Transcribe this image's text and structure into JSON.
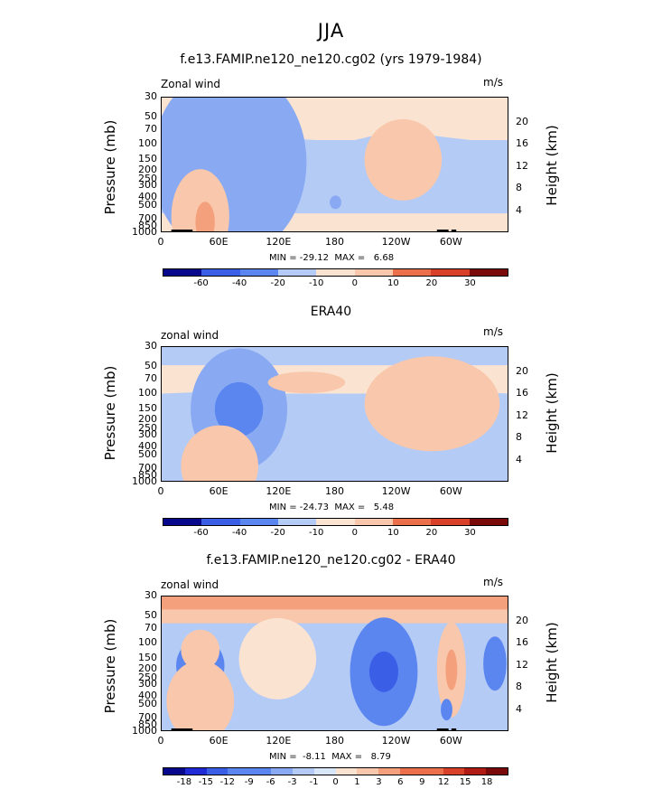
{
  "figure": {
    "title": "JJA",
    "colors": [
      "#08088c",
      "#1f2ad6",
      "#3a5fe6",
      "#5b86f0",
      "#89aaf2",
      "#b4cbf6",
      "#d8e6fa",
      "#fbe3d2",
      "#f9c7ab",
      "#f4a07d",
      "#ec6f4c",
      "#d9402a",
      "#b01c14",
      "#7a0a0a"
    ]
  },
  "panels": [
    {
      "title": "f.e13.FAMIP.ne120_ne120.cg02 (yrs 1979-1984)",
      "variable_label": "Zonal wind",
      "units_label": "m/s",
      "y_axis_label": "Pressure (mb)",
      "y2_axis_label": "Height (km)",
      "stats": "MIN = -29.12  MAX =   6.68",
      "colorbar_labels": [
        "-60",
        "-40",
        "-20",
        "-10",
        "0",
        "10",
        "20",
        "30"
      ]
    },
    {
      "title": "ERA40",
      "variable_label": "zonal wind",
      "units_label": "m/s",
      "y_axis_label": "Pressure (mb)",
      "y2_axis_label": "Height (km)",
      "stats": "MIN = -24.73  MAX =   5.48",
      "colorbar_labels": [
        "-60",
        "-40",
        "-20",
        "-10",
        "0",
        "10",
        "20",
        "30"
      ]
    },
    {
      "title": "f.e13.FAMIP.ne120_ne120.cg02 - ERA40",
      "variable_label": "zonal wind",
      "units_label": "m/s",
      "y_axis_label": "Pressure (mb)",
      "y2_axis_label": "Height (km)",
      "stats": "MIN =  -8.11  MAX =   8.79",
      "colorbar_labels": [
        "-18",
        "-15",
        "-12",
        "-9",
        "-6",
        "-3",
        "-1",
        "0",
        "1",
        "3",
        "6",
        "9",
        "12",
        "15",
        "18"
      ]
    }
  ],
  "chart_data": [
    {
      "type": "heatmap",
      "title": "f.e13.FAMIP.ne120_ne120.cg02 (yrs 1979-1984)",
      "ylabel": "Pressure (mb)",
      "y2label": "Height (km)",
      "x_ticks": [
        "0",
        "60E",
        "120E",
        "180",
        "120W",
        "60W"
      ],
      "x_tick_values": [
        0,
        60,
        120,
        180,
        240,
        300
      ],
      "xlim": [
        0,
        360
      ],
      "y_ticks": [
        "30",
        "50",
        "70",
        "100",
        "150",
        "200",
        "250",
        "300",
        "400",
        "500",
        "700",
        "850",
        "1000"
      ],
      "y_tick_values": [
        30,
        50,
        70,
        100,
        150,
        200,
        250,
        300,
        400,
        500,
        700,
        850,
        1000
      ],
      "ylim": [
        1000,
        30
      ],
      "y_scale": "log",
      "y2_ticks": [
        "4",
        "8",
        "12",
        "16",
        "20"
      ],
      "y2_tick_values": [
        4,
        8,
        12,
        16,
        20
      ],
      "min": -29.12,
      "max": 6.68,
      "contour_levels": [
        -60,
        -40,
        -20,
        -10,
        0,
        10,
        20,
        30
      ],
      "features": [
        {
          "kind": "background",
          "level": 1
        },
        {
          "kind": "band",
          "level": -1,
          "xlim": [
            0,
            360
          ],
          "pressure": [
            600,
            90
          ],
          "lift": [
            [
              0,
              0
            ],
            [
              60,
              0
            ],
            [
              120,
              10
            ],
            [
              160,
              0
            ],
            [
              200,
              0
            ],
            [
              240,
              40
            ],
            [
              280,
              20
            ],
            [
              320,
              0
            ],
            [
              360,
              0
            ]
          ]
        },
        {
          "kind": "core",
          "level": -3,
          "center": [
            70,
            160
          ],
          "half_width": [
            55,
            0.55
          ]
        },
        {
          "kind": "core",
          "level": -4,
          "center": [
            70,
            160
          ],
          "half_width": [
            22,
            0.28
          ]
        },
        {
          "kind": "core",
          "level": -2,
          "center": [
            70,
            160
          ],
          "half_width": [
            80,
            0.7
          ]
        },
        {
          "kind": "core",
          "level": 2,
          "center": [
            40,
            650
          ],
          "half_width": [
            30,
            0.35
          ]
        },
        {
          "kind": "core",
          "level": 3,
          "center": [
            45,
            750
          ],
          "half_width": [
            10,
            0.15
          ]
        },
        {
          "kind": "core",
          "level": 2,
          "center": [
            250,
            150
          ],
          "half_width": [
            40,
            0.3
          ]
        },
        {
          "kind": "core",
          "level": -2,
          "center": [
            180,
            450
          ],
          "half_width": [
            6,
            0.05
          ]
        }
      ],
      "topography": [
        [
          10,
          30
        ],
        [
          27,
          32
        ],
        [
          285,
          297
        ],
        [
          300,
          305
        ]
      ]
    },
    {
      "type": "heatmap",
      "title": "ERA40",
      "ylabel": "Pressure (mb)",
      "y2label": "Height (km)",
      "x_ticks": [
        "0",
        "60E",
        "120E",
        "180",
        "120W",
        "60W"
      ],
      "x_tick_values": [
        0,
        60,
        120,
        180,
        240,
        300
      ],
      "xlim": [
        0,
        360
      ],
      "y_ticks": [
        "30",
        "50",
        "70",
        "100",
        "150",
        "200",
        "250",
        "300",
        "400",
        "500",
        "700",
        "850",
        "1000"
      ],
      "y_tick_values": [
        30,
        50,
        70,
        100,
        150,
        200,
        250,
        300,
        400,
        500,
        700,
        850,
        1000
      ],
      "ylim": [
        1000,
        30
      ],
      "y_scale": "log",
      "y2_ticks": [
        "4",
        "8",
        "12",
        "16",
        "20"
      ],
      "y2_tick_values": [
        4,
        8,
        12,
        16,
        20
      ],
      "min": -24.73,
      "max": 5.48,
      "contour_levels": [
        -60,
        -40,
        -20,
        -10,
        0,
        10,
        20,
        30
      ],
      "features": [
        {
          "kind": "background",
          "level": 1
        },
        {
          "kind": "band",
          "level": -1,
          "xlim": [
            0,
            360
          ],
          "pressure": [
            30,
            48
          ],
          "lift": [
            [
              0,
              0
            ],
            [
              360,
              0
            ]
          ]
        },
        {
          "kind": "band",
          "level": -1,
          "xlim": [
            0,
            360
          ],
          "pressure": [
            1000,
            100
          ],
          "lift": [
            [
              0,
              0
            ],
            [
              60,
              10
            ],
            [
              120,
              0
            ],
            [
              180,
              0
            ],
            [
              220,
              0
            ],
            [
              260,
              50
            ],
            [
              300,
              10
            ],
            [
              360,
              0
            ]
          ]
        },
        {
          "kind": "core",
          "level": -2,
          "center": [
            80,
            150
          ],
          "half_width": [
            50,
            0.45
          ]
        },
        {
          "kind": "core",
          "level": -3,
          "center": [
            80,
            150
          ],
          "half_width": [
            25,
            0.2
          ]
        },
        {
          "kind": "core",
          "level": 2,
          "center": [
            280,
            130
          ],
          "half_width": [
            70,
            0.35
          ]
        },
        {
          "kind": "core",
          "level": 2,
          "center": [
            150,
            75
          ],
          "half_width": [
            40,
            0.08
          ]
        },
        {
          "kind": "core",
          "level": 2,
          "center": [
            60,
            650
          ],
          "half_width": [
            40,
            0.3
          ]
        }
      ],
      "topography": []
    },
    {
      "type": "heatmap",
      "title": "f.e13.FAMIP.ne120_ne120.cg02 - ERA40",
      "ylabel": "Pressure (mb)",
      "y2label": "Height (km)",
      "x_ticks": [
        "0",
        "60E",
        "120E",
        "180",
        "120W",
        "60W"
      ],
      "x_tick_values": [
        0,
        60,
        120,
        180,
        240,
        300
      ],
      "xlim": [
        0,
        360
      ],
      "y_ticks": [
        "30",
        "50",
        "70",
        "100",
        "150",
        "200",
        "250",
        "300",
        "400",
        "500",
        "700",
        "850",
        "1000"
      ],
      "y_tick_values": [
        30,
        50,
        70,
        100,
        150,
        200,
        250,
        300,
        400,
        500,
        700,
        850,
        1000
      ],
      "ylim": [
        1000,
        30
      ],
      "y_scale": "log",
      "y2_ticks": [
        "4",
        "8",
        "12",
        "16",
        "20"
      ],
      "y2_tick_values": [
        4,
        8,
        12,
        16,
        20
      ],
      "min": -8.11,
      "max": 8.79,
      "contour_levels": [
        -18,
        -15,
        -12,
        -9,
        -6,
        -3,
        -1,
        0,
        1,
        3,
        6,
        9,
        12,
        15,
        18
      ],
      "features": [
        {
          "kind": "background",
          "level": -1
        },
        {
          "kind": "band",
          "level": 2,
          "xlim": [
            0,
            360
          ],
          "pressure": [
            30,
            60
          ],
          "lift": [
            [
              0,
              0
            ],
            [
              360,
              0
            ]
          ]
        },
        {
          "kind": "band",
          "level": 3,
          "xlim": [
            0,
            360
          ],
          "pressure": [
            30,
            42
          ],
          "lift": [
            [
              0,
              0
            ],
            [
              360,
              0
            ]
          ]
        },
        {
          "kind": "core",
          "level": -3,
          "center": [
            230,
            210
          ],
          "half_width": [
            35,
            0.4
          ]
        },
        {
          "kind": "core",
          "level": -4,
          "center": [
            230,
            210
          ],
          "half_width": [
            15,
            0.15
          ]
        },
        {
          "kind": "core",
          "level": -3,
          "center": [
            40,
            180
          ],
          "half_width": [
            25,
            0.2
          ]
        },
        {
          "kind": "core",
          "level": -3,
          "center": [
            345,
            170
          ],
          "half_width": [
            12,
            0.2
          ]
        },
        {
          "kind": "core",
          "level": 2,
          "center": [
            300,
            200
          ],
          "half_width": [
            15,
            0.35
          ]
        },
        {
          "kind": "core",
          "level": 3,
          "center": [
            300,
            200
          ],
          "half_width": [
            6,
            0.15
          ]
        },
        {
          "kind": "core",
          "level": 1,
          "center": [
            120,
            150
          ],
          "half_width": [
            40,
            0.3
          ]
        },
        {
          "kind": "core",
          "level": 2,
          "center": [
            40,
            450
          ],
          "half_width": [
            35,
            0.3
          ]
        },
        {
          "kind": "core",
          "level": 2,
          "center": [
            40,
            120
          ],
          "half_width": [
            20,
            0.15
          ]
        },
        {
          "kind": "core",
          "level": -3,
          "center": [
            295,
            560
          ],
          "half_width": [
            6,
            0.08
          ]
        }
      ],
      "topography": [
        [
          10,
          30
        ],
        [
          27,
          32
        ],
        [
          285,
          297
        ],
        [
          300,
          305
        ]
      ]
    }
  ]
}
